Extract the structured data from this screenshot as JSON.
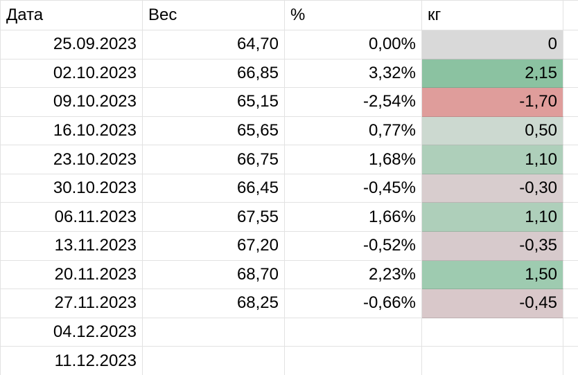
{
  "table": {
    "headers": [
      {
        "key": "date",
        "label": "Дата"
      },
      {
        "key": "weight",
        "label": "Вес"
      },
      {
        "key": "percent",
        "label": "%"
      },
      {
        "key": "kg",
        "label": "кг"
      },
      {
        "key": "extra",
        "label": ""
      }
    ],
    "rows": [
      {
        "date": "25.09.2023",
        "weight": "64,70",
        "percent": "0,00%",
        "kg": "0",
        "kg_bg": "#d9d9d9"
      },
      {
        "date": "02.10.2023",
        "weight": "66,85",
        "percent": "3,32%",
        "kg": "2,15",
        "kg_bg": "#8bc2a1"
      },
      {
        "date": "09.10.2023",
        "weight": "65,15",
        "percent": "-2,54%",
        "kg": "-1,70",
        "kg_bg": "#df9d9b"
      },
      {
        "date": "16.10.2023",
        "weight": "65,65",
        "percent": "0,77%",
        "kg": "0,50",
        "kg_bg": "#ccd9d0"
      },
      {
        "date": "23.10.2023",
        "weight": "66,75",
        "percent": "1,68%",
        "kg": "1,10",
        "kg_bg": "#aecfba"
      },
      {
        "date": "30.10.2023",
        "weight": "66,45",
        "percent": "-0,45%",
        "kg": "-0,30",
        "kg_bg": "#d8cdce"
      },
      {
        "date": "06.11.2023",
        "weight": "67,55",
        "percent": "1,66%",
        "kg": "1,10",
        "kg_bg": "#aecfba"
      },
      {
        "date": "13.11.2023",
        "weight": "67,20",
        "percent": "-0,52%",
        "kg": "-0,35",
        "kg_bg": "#d7cacc"
      },
      {
        "date": "20.11.2023",
        "weight": "68,70",
        "percent": "2,23%",
        "kg": "1,50",
        "kg_bg": "#9ecbb0"
      },
      {
        "date": "27.11.2023",
        "weight": "68,25",
        "percent": "-0,66%",
        "kg": "-0,45",
        "kg_bg": "#d9c8ca"
      },
      {
        "date": "04.12.2023",
        "weight": "",
        "percent": "",
        "kg": "",
        "kg_bg": ""
      },
      {
        "date": "11.12.2023",
        "weight": "",
        "percent": "",
        "kg": "",
        "kg_bg": ""
      }
    ]
  },
  "colors": {
    "gridline": "#e2e2e2",
    "text": "#000000",
    "background": "#ffffff",
    "kg_zero_fill": "#d9d9d9",
    "kg_max_positive_fill": "#8bc2a1",
    "kg_max_negative_fill": "#df9d9b"
  }
}
